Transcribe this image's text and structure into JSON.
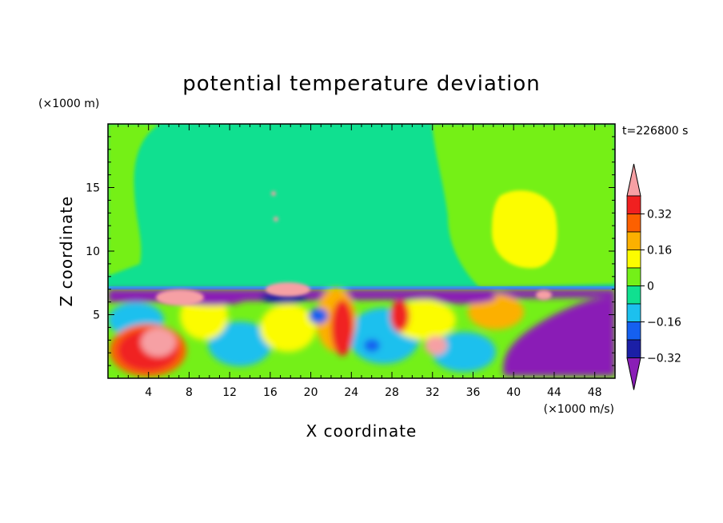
{
  "chart_data": {
    "type": "heatmap",
    "title": "potential temperature deviation",
    "xlabel": "X coordinate",
    "ylabel": "Z coordinate",
    "x_unit": "(×1000 m/s)",
    "y_unit": "(×1000 m)",
    "time_label": "t=226800 s",
    "xlim": [
      0,
      50
    ],
    "ylim": [
      0,
      20
    ],
    "x_ticks": [
      4,
      8,
      12,
      16,
      20,
      24,
      28,
      32,
      36,
      40,
      44,
      48
    ],
    "y_ticks": [
      5,
      10,
      15
    ],
    "colorbar": {
      "levels": [
        -0.4,
        -0.32,
        -0.24,
        -0.16,
        -0.08,
        0,
        0.08,
        0.16,
        0.24,
        0.32,
        0.4
      ],
      "labeled": [
        "0.32",
        "0.16",
        "0",
        "−0.16",
        "−0.32"
      ],
      "colors": [
        "#8a1fb6",
        "#1b1fa6",
        "#1560f0",
        "#1cc0ee",
        "#10e090",
        "#74f018",
        "#fcfc00",
        "#fcb000",
        "#fc6000",
        "#f02020",
        "#f6a0a4"
      ]
    },
    "regions": [
      {
        "name": "upper layer",
        "z_range": [
          7,
          20
        ],
        "value": 0.0
      },
      {
        "name": "upper-right warm region",
        "x_range": [
          32,
          50
        ],
        "z_range": [
          7,
          20
        ],
        "value": 0.08
      },
      {
        "name": "inversion layer",
        "z_range": [
          6.5,
          7
        ],
        "value": -0.36
      },
      {
        "name": "warm core near x=6",
        "x_center": 5.5,
        "z_center": 2.5,
        "value": 0.4
      },
      {
        "name": "cold region lower right",
        "x_range": [
          39,
          50
        ],
        "z_range": [
          0,
          6.5
        ],
        "value": -0.4
      }
    ]
  }
}
